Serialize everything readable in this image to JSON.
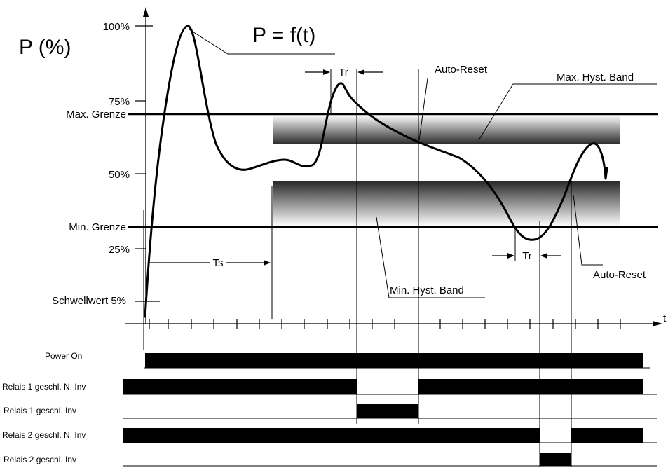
{
  "title": {
    "y_axis_label": "P (%)",
    "function_label": "P = f(t)"
  },
  "x_axis": {
    "label": "t"
  },
  "y_axis": {
    "ticks": [
      "100%",
      "75%",
      "50%",
      "25%"
    ],
    "level_labels": {
      "max_limit": "Max. Grenze",
      "min_limit": "Min. Grenze",
      "threshold": "Schwellwert 5%"
    }
  },
  "annotations": {
    "tr_top": "Tr",
    "tr_bottom": "Tr",
    "ts": "Ts",
    "auto_reset_top": "Auto-Reset",
    "auto_reset_right": "Auto-Reset",
    "max_hyst_band": "Max. Hyst. Band",
    "min_hyst_band": "Min. Hyst. Band"
  },
  "timing_rows": [
    {
      "label": "Power On"
    },
    {
      "label": "Relais 1 geschl. N. Inv"
    },
    {
      "label": "Relais 1 geschl. Inv"
    },
    {
      "label": "Relais 2 geschl. N. Inv"
    },
    {
      "label": "Relais 2 geschl. Inv"
    }
  ]
}
